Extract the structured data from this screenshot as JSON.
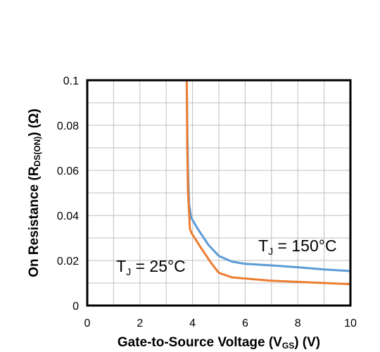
{
  "chart_data": {
    "type": "line",
    "xlabel": {
      "main": "Gate-to-Source Voltage (V",
      "sub": "GS",
      "tail": ") (V)"
    },
    "ylabel": {
      "main": "On Resistance (R",
      "sub": "DS(ON)",
      "tail": ") (Ω)"
    },
    "xlim": [
      0,
      10
    ],
    "ylim": [
      0,
      0.1
    ],
    "x_ticks": [
      {
        "value": 0,
        "label": "0"
      },
      {
        "value": 2,
        "label": "2"
      },
      {
        "value": 4,
        "label": "4"
      },
      {
        "value": 6,
        "label": "6"
      },
      {
        "value": 8,
        "label": "8"
      },
      {
        "value": 10,
        "label": "10"
      }
    ],
    "y_ticks": [
      {
        "value": 0,
        "label": "0"
      },
      {
        "value": 0.02,
        "label": "0.02"
      },
      {
        "value": 0.04,
        "label": "0.04"
      },
      {
        "value": 0.06,
        "label": "0.06"
      },
      {
        "value": 0.08,
        "label": "0.08"
      },
      {
        "value": 0.1,
        "label": "0.1"
      }
    ],
    "grid": true,
    "series": [
      {
        "name": "TJ = 150°C",
        "color": "#5b9bd5",
        "points": [
          [
            3.78,
            0.1
          ],
          [
            3.8,
            0.08
          ],
          [
            3.83,
            0.06
          ],
          [
            3.87,
            0.045
          ],
          [
            3.95,
            0.039
          ],
          [
            4.2,
            0.034
          ],
          [
            4.6,
            0.027
          ],
          [
            5.0,
            0.022
          ],
          [
            5.5,
            0.0195
          ],
          [
            6.0,
            0.0185
          ],
          [
            7.0,
            0.0178
          ],
          [
            8.0,
            0.017
          ],
          [
            9.0,
            0.016
          ],
          [
            10.0,
            0.0153
          ]
        ]
      },
      {
        "name": "TJ = 25°C",
        "color": "#ed7d31",
        "points": [
          [
            3.78,
            0.1
          ],
          [
            3.8,
            0.07
          ],
          [
            3.83,
            0.05
          ],
          [
            3.9,
            0.034
          ],
          [
            3.97,
            0.032
          ],
          [
            4.3,
            0.026
          ],
          [
            4.7,
            0.019
          ],
          [
            5.0,
            0.0145
          ],
          [
            5.5,
            0.0125
          ],
          [
            6.0,
            0.012
          ],
          [
            7.0,
            0.011
          ],
          [
            8.0,
            0.0105
          ],
          [
            9.0,
            0.01
          ],
          [
            10.0,
            0.0095
          ]
        ]
      }
    ],
    "annotations": [
      {
        "series": 0,
        "main": "T",
        "sub": "J",
        "tail": " = 150°C",
        "x": 6.5,
        "y": 0.024
      },
      {
        "series": 1,
        "main": "T",
        "sub": "J",
        "tail": " = 25°C",
        "x": 1.1,
        "y": 0.015
      }
    ]
  }
}
